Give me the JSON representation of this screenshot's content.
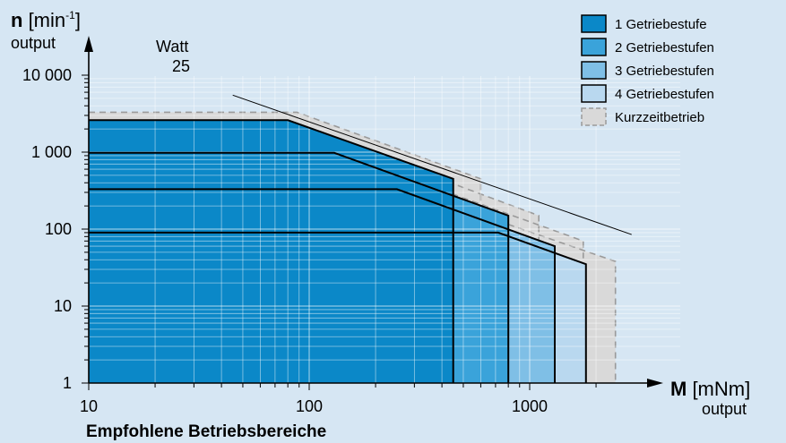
{
  "chart_data": {
    "type": "area",
    "title": "",
    "footer": "Empfohlene Betriebsbereiche",
    "y_axis": {
      "symbol": "n",
      "unit": "[min",
      "unit_sup": "-1",
      "unit_close": "]",
      "sublabel": "output",
      "scale": "log",
      "range": [
        1,
        10000
      ],
      "ticks": [
        1,
        10,
        100,
        1000,
        10000
      ],
      "tick_labels": [
        "1",
        "10",
        "100",
        "1 000",
        "10 000"
      ]
    },
    "x_axis": {
      "symbol": "M",
      "unit": "[mNm]",
      "sublabel": "output",
      "scale": "log",
      "range": [
        10,
        2500
      ],
      "ticks": [
        10,
        100,
        1000
      ],
      "tick_labels": [
        "10",
        "100",
        "1000"
      ]
    },
    "power_line": {
      "label": "Watt",
      "value": "25",
      "points": [
        [
          45,
          5500
        ],
        [
          2900,
          85
        ]
      ]
    },
    "legend": {
      "position": "top-right",
      "items": [
        {
          "label": "1 Getriebestufe",
          "color": "#0b88c8"
        },
        {
          "label": "2 Getriebestufen",
          "color": "#3aa3da"
        },
        {
          "label": "3 Getriebestufen",
          "color": "#7fbfe6"
        },
        {
          "label": "4 Getriebestufen",
          "color": "#b9d8ef"
        },
        {
          "label": "Kurzzeitbetrieb",
          "color": "#d9d9d9",
          "dashed": true
        }
      ]
    },
    "series": [
      {
        "name": "4 Getriebestufen",
        "color": "#b9d8ef",
        "outline": [
          [
            10,
            90
          ],
          [
            720,
            90
          ],
          [
            1800,
            35
          ],
          [
            1800,
            1
          ]
        ]
      },
      {
        "name": "3 Getriebestufen",
        "color": "#7fbfe6",
        "outline": [
          [
            10,
            330
          ],
          [
            250,
            330
          ],
          [
            1300,
            60
          ],
          [
            1300,
            1
          ]
        ]
      },
      {
        "name": "2 Getriebestufen",
        "color": "#3aa3da",
        "outline": [
          [
            10,
            980
          ],
          [
            130,
            980
          ],
          [
            800,
            150
          ],
          [
            800,
            1
          ]
        ]
      },
      {
        "name": "1 Getriebestufe",
        "color": "#0b88c8",
        "outline": [
          [
            10,
            2600
          ],
          [
            80,
            2600
          ],
          [
            450,
            450
          ],
          [
            450,
            1
          ]
        ]
      }
    ],
    "kurzzeitbetrieb": [
      {
        "outline": [
          [
            10,
            3300
          ],
          [
            88,
            3300
          ],
          [
            600,
            450
          ],
          [
            600,
            1
          ]
        ]
      },
      {
        "outline": [
          [
            10,
            1250
          ],
          [
            150,
            1250
          ],
          [
            1100,
            150
          ],
          [
            1100,
            1
          ]
        ]
      },
      {
        "outline": [
          [
            10,
            430
          ],
          [
            300,
            430
          ],
          [
            1750,
            70
          ],
          [
            1750,
            1
          ]
        ]
      },
      {
        "outline": [
          [
            10,
            115
          ],
          [
            800,
            115
          ],
          [
            2450,
            38
          ],
          [
            2450,
            1
          ]
        ]
      }
    ]
  }
}
